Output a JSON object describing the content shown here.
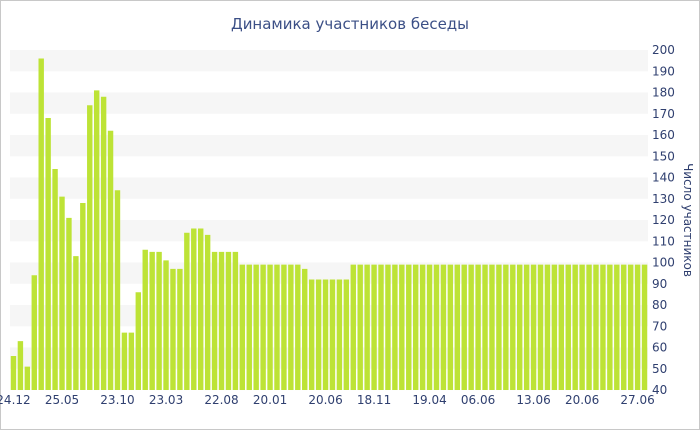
{
  "chart_data": {
    "type": "bar",
    "title": "Динамика участников беседы",
    "xlabel": "",
    "ylabel": "Число участников",
    "ylim": [
      40,
      200
    ],
    "ytick_step": 10,
    "grid": "horizontal bands",
    "bar_color": "#bde336",
    "band_color": "#f6f6f6",
    "text_color": "#2f3f6f",
    "x_tick_labels": [
      "24.12",
      "25.05",
      "23.10",
      "23.03",
      "22.08",
      "20.01",
      "20.06",
      "18.11",
      "19.04",
      "06.06",
      "13.06",
      "20.06",
      "27.06"
    ],
    "x_tick_positions": [
      0,
      7,
      15,
      22,
      30,
      37,
      45,
      52,
      60,
      67,
      75,
      82,
      90
    ],
    "values": [
      56,
      63,
      51,
      94,
      196,
      168,
      144,
      131,
      121,
      103,
      128,
      174,
      181,
      178,
      162,
      134,
      67,
      67,
      86,
      106,
      105,
      105,
      101,
      97,
      97,
      114,
      116,
      116,
      113,
      105,
      105,
      105,
      105,
      99,
      99,
      99,
      99,
      99,
      99,
      99,
      99,
      99,
      97,
      92,
      92,
      92,
      92,
      92,
      92,
      99,
      99,
      99,
      99,
      99,
      99,
      99,
      99,
      99,
      99,
      99,
      99,
      99,
      99,
      99,
      99,
      99,
      99,
      99,
      99,
      99,
      99,
      99,
      99,
      99,
      99,
      99,
      99,
      99,
      99,
      99,
      99,
      99,
      99,
      99,
      99,
      99,
      99,
      99,
      99,
      99,
      99,
      99
    ]
  }
}
